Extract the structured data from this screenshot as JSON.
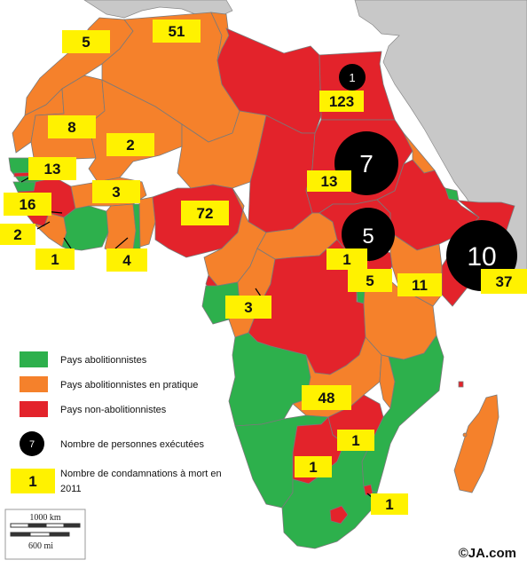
{
  "colors": {
    "sea": "#ffffff",
    "other_land": "#c8c8c8",
    "abolitionist": "#2db04c",
    "abolitionist_in_practice": "#f5812b",
    "non_abolitionist": "#e3232b",
    "executions_marker": "#000000",
    "sentences_marker": "#fff200",
    "borders": "#7a7a7a"
  },
  "legend": {
    "abolitionist": "Pays abolitionnistes",
    "abolitionist_in_practice": "Pays abolitionnistes en pratique",
    "non_abolitionist": "Pays non-abolitionnistes",
    "executions_label": "Nombre de personnes exécutées",
    "executions_sample": "7",
    "sentences_label_line1": "Nombre de condamnations à mort en",
    "sentences_label_line2": "2011",
    "sentences_sample": "1"
  },
  "scale": {
    "km": "1000 km",
    "mi": "600 mi"
  },
  "credit": "©JA.com",
  "death_sentences_2011": [
    {
      "id": "morocco",
      "value": "5"
    },
    {
      "id": "algeria",
      "value": "51"
    },
    {
      "id": "egypt",
      "value": "123"
    },
    {
      "id": "mauritania",
      "value": "8"
    },
    {
      "id": "mali",
      "value": "2"
    },
    {
      "id": "senegal",
      "value": "13"
    },
    {
      "id": "gambia",
      "value": "16"
    },
    {
      "id": "sierra-leone",
      "value": "2"
    },
    {
      "id": "liberia",
      "value": "1"
    },
    {
      "id": "burkina-faso",
      "value": "3"
    },
    {
      "id": "ghana",
      "value": "4"
    },
    {
      "id": "nigeria",
      "value": "72"
    },
    {
      "id": "sudan",
      "value": "13"
    },
    {
      "id": "south-sudan",
      "value": "1"
    },
    {
      "id": "uganda",
      "value": "5"
    },
    {
      "id": "kenya",
      "value": "11"
    },
    {
      "id": "somalia",
      "value": "37"
    },
    {
      "id": "cameroon-congo",
      "value": "3"
    },
    {
      "id": "zambia",
      "value": "48"
    },
    {
      "id": "zimbabwe",
      "value": "1"
    },
    {
      "id": "botswana",
      "value": "1"
    },
    {
      "id": "swaziland",
      "value": "1"
    }
  ],
  "executions_2011": [
    {
      "id": "egypt",
      "value": "1"
    },
    {
      "id": "sudan",
      "value": "7"
    },
    {
      "id": "south-sudan",
      "value": "5"
    },
    {
      "id": "somalia",
      "value": "10"
    }
  ]
}
